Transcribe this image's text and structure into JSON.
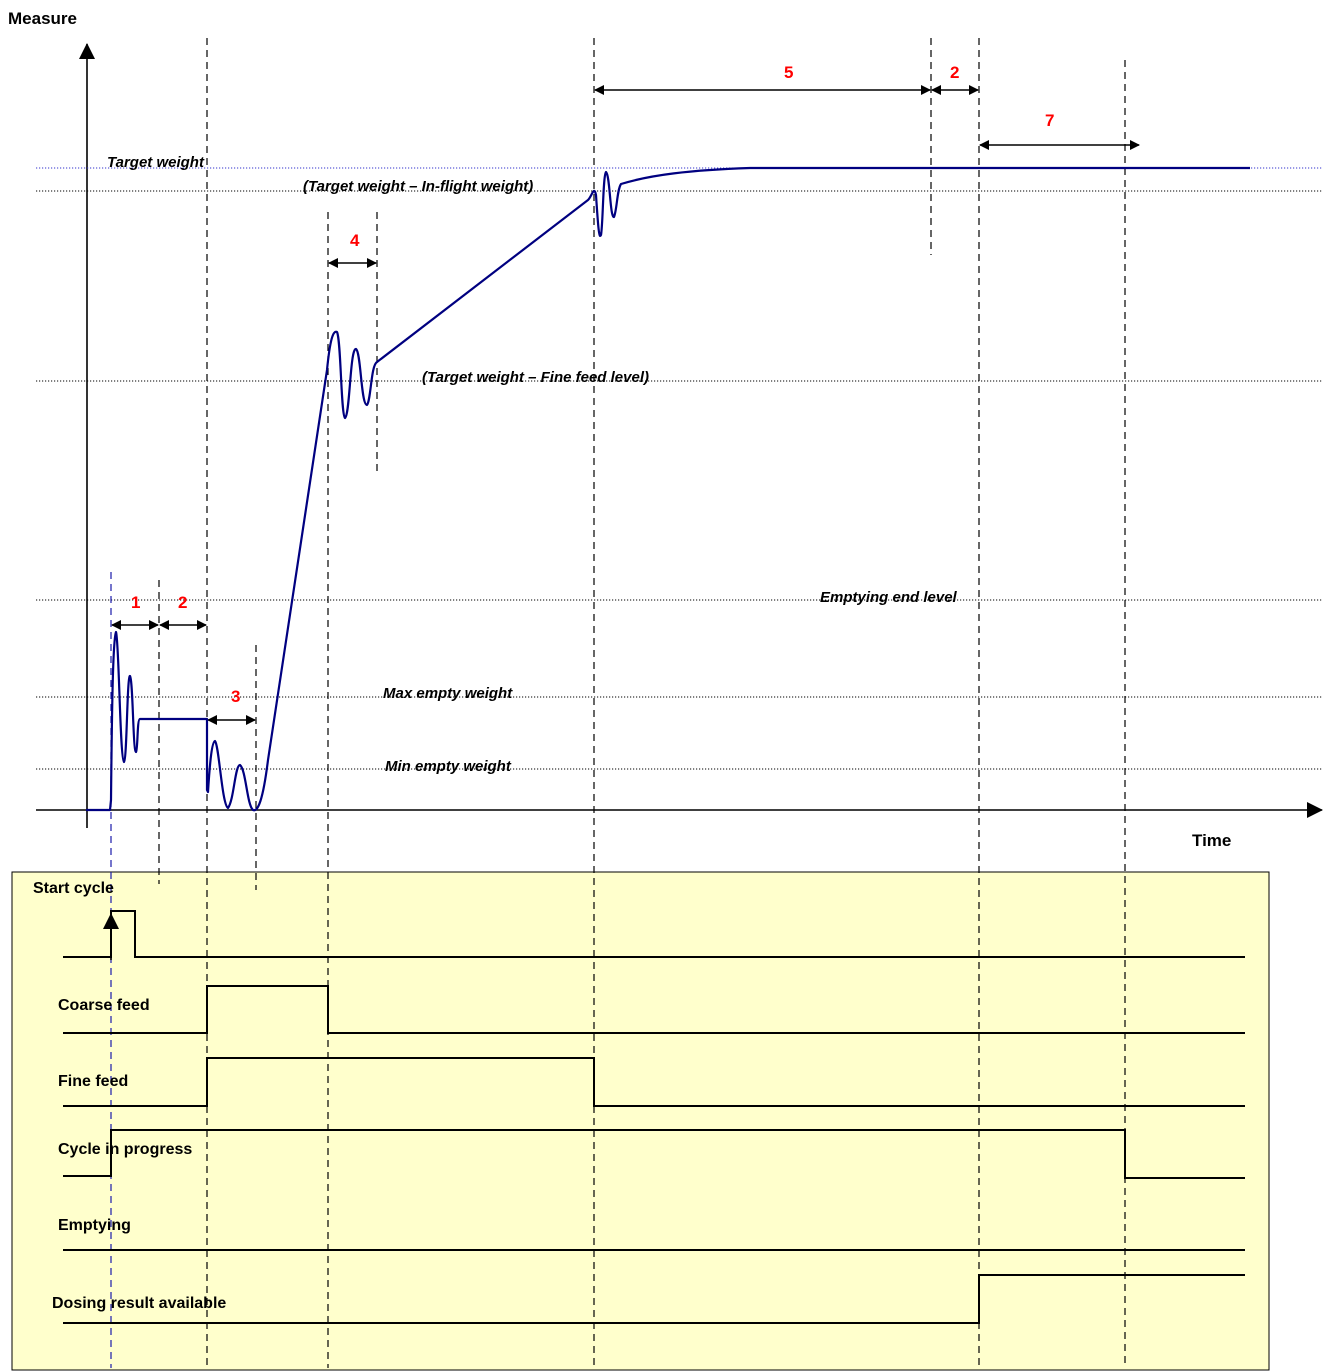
{
  "axes": {
    "y_label": "Measure",
    "x_label": "Time"
  },
  "levels": {
    "target_weight": "Target weight",
    "target_minus_inflight": "(Target weight – In-flight weight)",
    "target_minus_fine_feed": "(Target weight – Fine feed level)",
    "emptying_end_level": "Emptying end level",
    "max_empty_weight": "Max empty weight",
    "min_empty_weight": "Min empty weight"
  },
  "intervals": {
    "i1": "1",
    "i2a": "2",
    "i3": "3",
    "i4": "4",
    "i5": "5",
    "i2b": "2",
    "i7": "7"
  },
  "signals": {
    "start_cycle": "Start cycle",
    "coarse_feed": "Coarse feed",
    "fine_feed": "Fine feed",
    "cycle_in_progress": "Cycle in progress",
    "emptying": "Emptying",
    "dosing_result": "Dosing result available"
  },
  "colors": {
    "weight_curve": "#000080",
    "interval_numbers": "#ff0000",
    "signal_panel": "#ffffcc",
    "target_line": "#3333cc"
  }
}
